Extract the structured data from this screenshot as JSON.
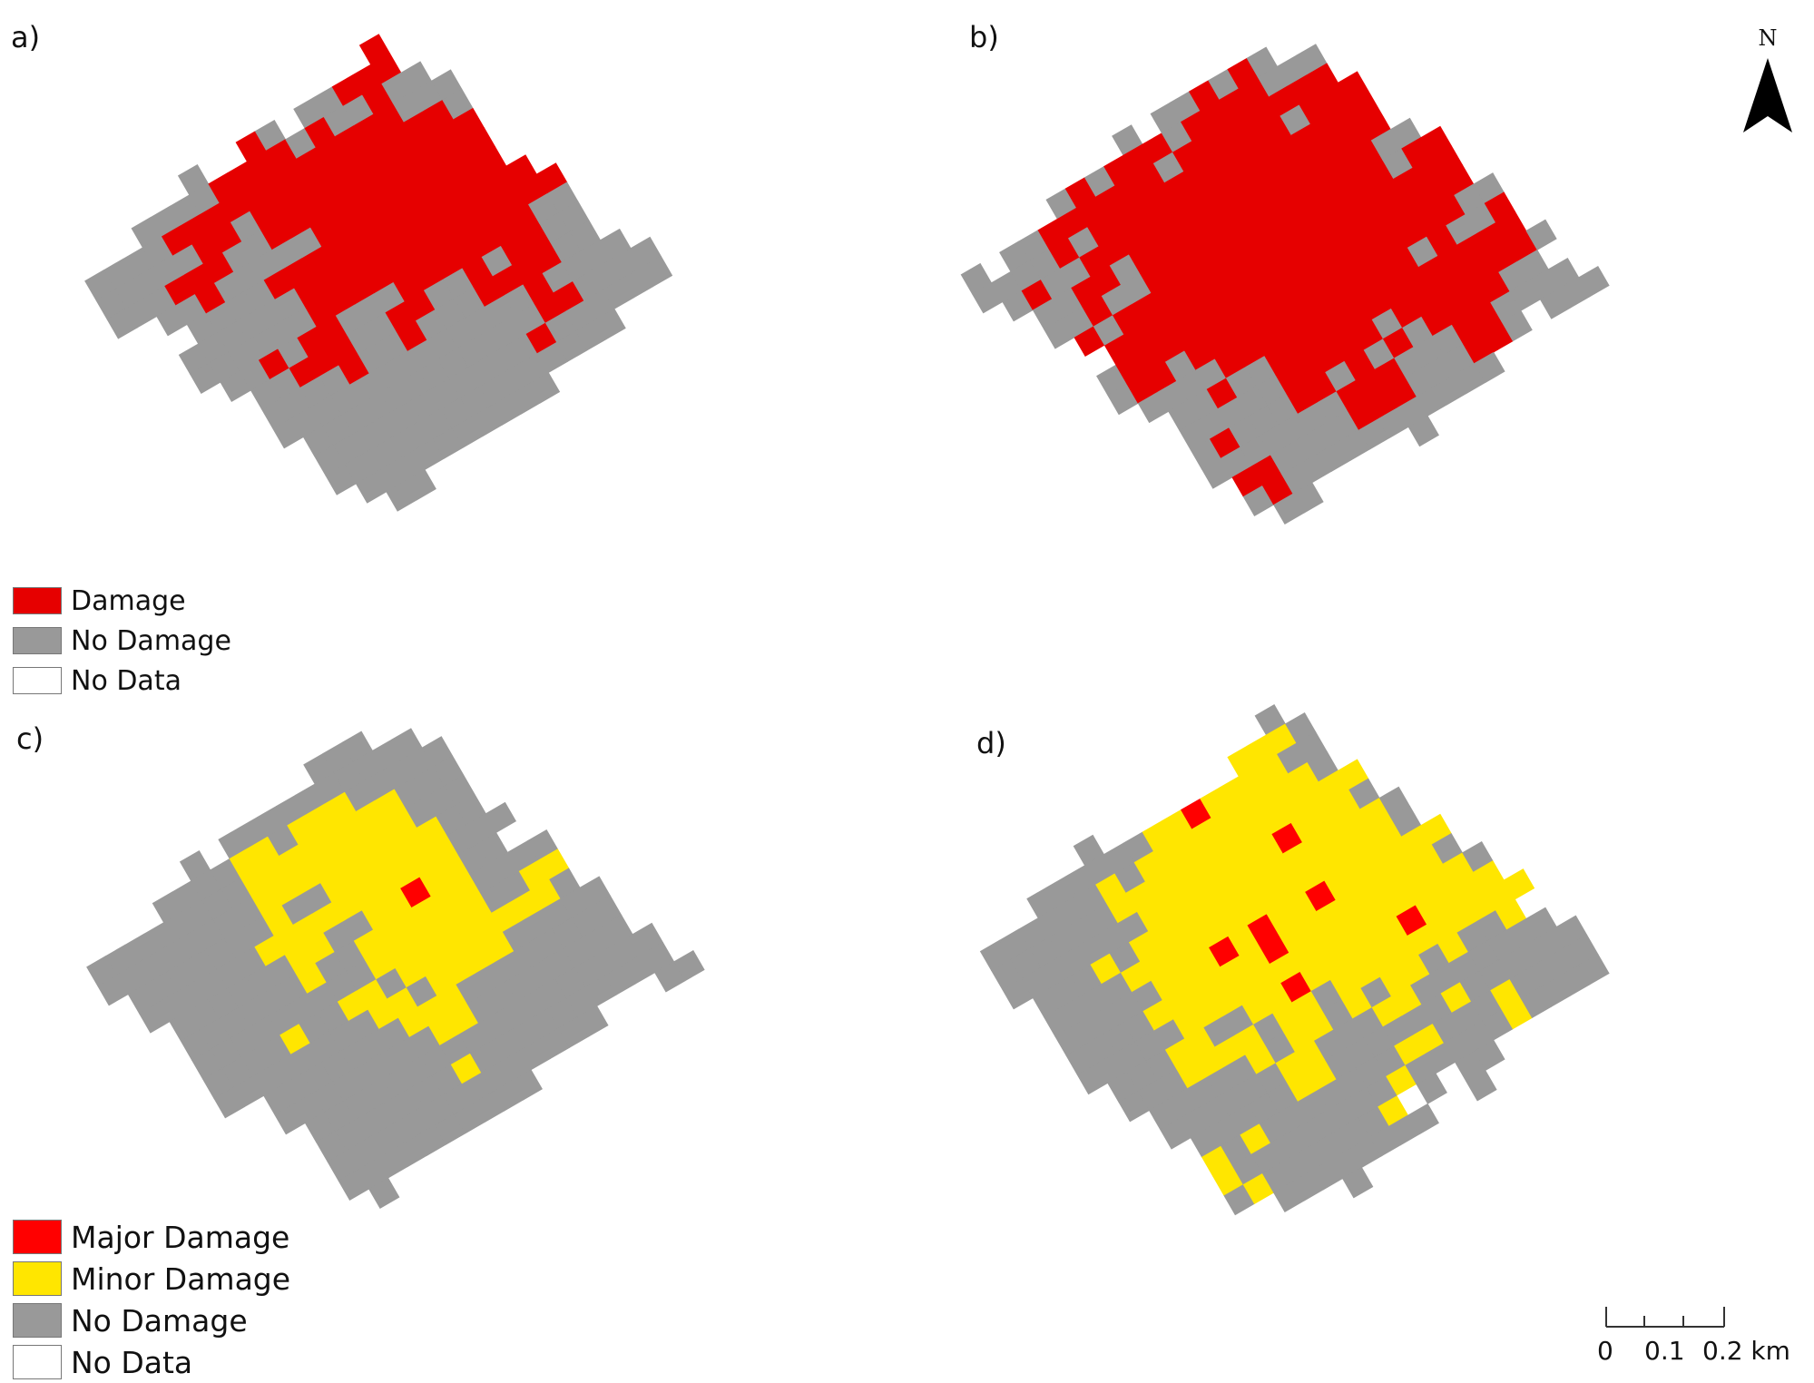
{
  "colors": {
    "damage": "#e60000",
    "major_damage": "#ff0000",
    "minor_damage": "#ffe600",
    "no_damage": "#999999",
    "no_data": "#ffffff"
  },
  "panels": [
    {
      "label": "a)",
      "mode": "binary",
      "seed": 11,
      "damage_share": 0.5
    },
    {
      "label": "b)",
      "mode": "binary",
      "seed": 23,
      "damage_share": 0.62
    },
    {
      "label": "c)",
      "mode": "three",
      "seed": 37,
      "damage_share": 0.42,
      "major_share": 0.09
    },
    {
      "label": "d)",
      "mode": "three",
      "seed": 51,
      "damage_share": 0.6,
      "major_share": 0.1
    }
  ],
  "legend_top": [
    {
      "label": "Damage",
      "color_key": "damage"
    },
    {
      "label": "No Damage",
      "color_key": "no_damage"
    },
    {
      "label": "No Data",
      "color_key": "no_data"
    }
  ],
  "legend_bottom": [
    {
      "label": "Major Damage",
      "color_key": "major_damage"
    },
    {
      "label": "Minor Damage",
      "color_key": "minor_damage"
    },
    {
      "label": "No Damage",
      "color_key": "no_damage"
    },
    {
      "label": "No Data",
      "color_key": "no_data"
    }
  ],
  "north_arrow": {
    "label": "N"
  },
  "scale_bar": {
    "ticks": [
      "0",
      "0.1",
      "0.2 km"
    ]
  }
}
